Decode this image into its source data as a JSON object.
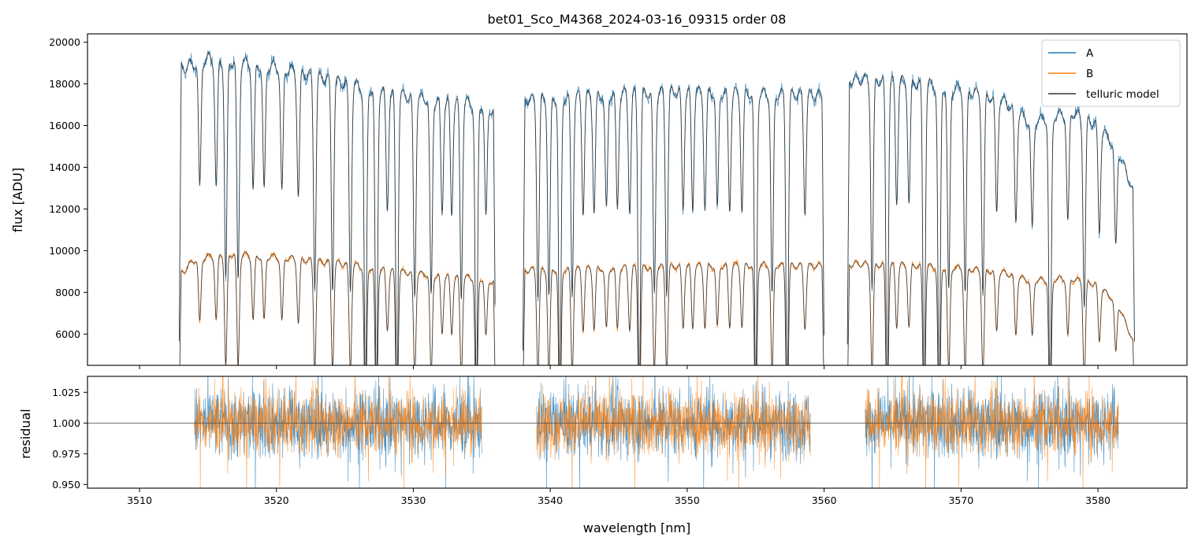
{
  "chart_data": [
    {
      "type": "line",
      "panel": "top",
      "title": "bet01_Sco_M4368_2024-03-16_09315  order 08",
      "xlabel": "",
      "ylabel": "flux [ADU]",
      "xlim": [
        3506.2,
        3586.5
      ],
      "ylim": [
        4500,
        20400
      ],
      "yticks": [
        6000,
        8000,
        10000,
        12000,
        14000,
        16000,
        18000,
        20000
      ],
      "ytick_labels": [
        "6000",
        "8000",
        "10000",
        "12000",
        "14000",
        "16000",
        "18000",
        "20000"
      ],
      "xticks": [
        3510,
        3520,
        3530,
        3540,
        3550,
        3560,
        3570,
        3580
      ],
      "legend": {
        "position": "top-right",
        "entries": [
          {
            "label": "A",
            "color": "#1f77b4"
          },
          {
            "label": "B",
            "color": "#ff7f0e"
          },
          {
            "label": "telluric model",
            "color": "#333333"
          }
        ]
      },
      "series": [
        {
          "name": "A",
          "color": "#1f77b4",
          "segments": [
            [
              3512.9,
              3536.0
            ],
            [
              3538.0,
              3560.0
            ],
            [
              3561.7,
              3582.7
            ]
          ],
          "continuum": [
            [
              3513,
              19000
            ],
            [
              3515,
              19500
            ],
            [
              3520,
              19100
            ],
            [
              3525,
              18300
            ],
            [
              3530,
              17600
            ],
            [
              3535,
              17300
            ],
            [
              3536,
              16900
            ],
            [
              3538,
              17500
            ],
            [
              3545,
              17800
            ],
            [
              3550,
              17900
            ],
            [
              3555,
              17800
            ],
            [
              3560,
              17700
            ],
            [
              3562,
              18500
            ],
            [
              3566,
              18400
            ],
            [
              3570,
              18000
            ],
            [
              3573,
              17500
            ],
            [
              3575,
              16400
            ],
            [
              3578,
              16900
            ],
            [
              3580,
              16300
            ],
            [
              3581.5,
              15000
            ],
            [
              3582.7,
              12800
            ]
          ]
        },
        {
          "name": "B",
          "color": "#ff7f0e",
          "segments": [
            [
              3512.9,
              3536.0
            ],
            [
              3538.0,
              3560.0
            ],
            [
              3561.7,
              3582.7
            ]
          ],
          "continuum": [
            [
              3513,
              9000
            ],
            [
              3514,
              9700
            ],
            [
              3516,
              10000
            ],
            [
              3520,
              9850
            ],
            [
              3525,
              9500
            ],
            [
              3530,
              9050
            ],
            [
              3535,
              8800
            ],
            [
              3536,
              8600
            ],
            [
              3538,
              9200
            ],
            [
              3545,
              9300
            ],
            [
              3550,
              9400
            ],
            [
              3555,
              9450
            ],
            [
              3560,
              9400
            ],
            [
              3562,
              9500
            ],
            [
              3566,
              9450
            ],
            [
              3570,
              9300
            ],
            [
              3573,
              9100
            ],
            [
              3575,
              8700
            ],
            [
              3578,
              8800
            ],
            [
              3580,
              8500
            ],
            [
              3581.5,
              7500
            ],
            [
              3582.7,
              5500
            ]
          ]
        },
        {
          "name": "telluric model",
          "color": "#333333",
          "overlays": [
            "A",
            "B"
          ]
        }
      ],
      "absorption_lines": [
        3514.4,
        3515.6,
        3516.3,
        3517.2,
        3518.3,
        3519.1,
        3520.4,
        3521.6,
        3522.8,
        3524.1,
        3525.4,
        3526.5,
        3527.3,
        3528.1,
        3528.8,
        3530.1,
        3531.3,
        3532.1,
        3532.8,
        3533.5,
        3534.6,
        3535.3,
        3539.1,
        3539.9,
        3540.7,
        3541.6,
        3542.4,
        3543.2,
        3544.1,
        3544.9,
        3545.8,
        3546.5,
        3547.6,
        3548.5,
        3549.7,
        3550.4,
        3551.3,
        3552.2,
        3553.1,
        3554.0,
        3555.0,
        3556.2,
        3557.3,
        3558.6,
        3563.5,
        3564.6,
        3565.3,
        3566.2,
        3567.3,
        3568.4,
        3569.1,
        3570.3,
        3571.6,
        3572.6,
        3574.0,
        3575.2,
        3576.5,
        3577.8,
        3579.0,
        3580.1,
        3581.3
      ]
    },
    {
      "type": "line",
      "panel": "bottom",
      "title": "",
      "xlabel": "wavelength [nm]",
      "ylabel": "residual",
      "xlim": [
        3506.2,
        3586.5
      ],
      "ylim": [
        0.947,
        1.038
      ],
      "yticks": [
        0.95,
        0.975,
        1.0,
        1.025
      ],
      "ytick_labels": [
        "0.950",
        "0.975",
        "1.000",
        "1.025"
      ],
      "xticks": [
        3510,
        3520,
        3530,
        3540,
        3550,
        3560,
        3570,
        3580
      ],
      "xtick_labels": [
        "3510",
        "3520",
        "3530",
        "3540",
        "3550",
        "3560",
        "3570",
        "3580"
      ],
      "reference_line": 1.0,
      "series": [
        {
          "name": "A",
          "color": "#1f77b4",
          "center": 1.0,
          "scatter": 0.02,
          "segments": [
            [
              3514.0,
              3535.0
            ],
            [
              3539.0,
              3559.0
            ],
            [
              3563.0,
              3581.5
            ]
          ]
        },
        {
          "name": "B",
          "color": "#ff7f0e",
          "center": 1.0,
          "scatter": 0.018,
          "segments": [
            [
              3514.0,
              3535.0
            ],
            [
              3539.0,
              3559.0
            ],
            [
              3563.0,
              3581.5
            ]
          ]
        }
      ]
    }
  ]
}
